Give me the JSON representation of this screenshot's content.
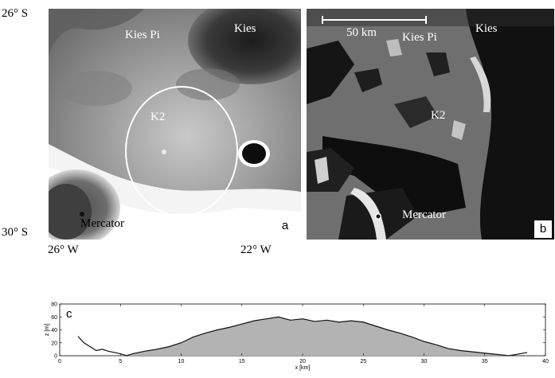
{
  "coordinates": {
    "lat_top": "26° S",
    "lat_bottom": "30° S",
    "lon_left": "26° W",
    "lon_right": "22° W"
  },
  "panel_a": {
    "badge": "a",
    "labels": {
      "kies_pi": "Kies Pi",
      "kies": "Kies",
      "k2": "K2",
      "mercator": "Mercator"
    }
  },
  "panel_b": {
    "badge": "b",
    "scale_bar": "50 km",
    "labels": {
      "kies_pi": "Kies Pi",
      "kies": "Kies",
      "k2": "K2",
      "mercator": "Mercator"
    }
  },
  "chart_data": {
    "type": "area",
    "panel_label": "c",
    "xlabel": "x [km]",
    "ylabel": "z [m]",
    "xlim": [
      0,
      40
    ],
    "ylim": [
      0,
      80
    ],
    "xticks": [
      0,
      5,
      10,
      15,
      20,
      25,
      30,
      35,
      40
    ],
    "yticks": [
      0,
      20,
      40,
      60,
      80
    ],
    "profile_x": [
      1.5,
      2,
      2.5,
      3,
      3.5,
      4,
      4.5,
      5,
      5.5,
      6,
      7,
      8,
      9,
      10,
      11,
      12,
      13,
      14,
      15,
      16,
      17,
      18,
      19,
      20,
      21,
      22,
      23,
      24,
      25,
      26,
      27,
      28,
      29,
      30,
      31,
      32,
      33,
      34,
      35,
      36,
      37,
      38.5
    ],
    "profile_z": [
      30,
      20,
      14,
      8,
      10,
      7,
      5,
      3,
      0,
      3,
      7,
      10,
      14,
      20,
      29,
      35,
      40,
      44,
      49,
      54,
      57,
      60,
      55,
      57,
      53,
      55,
      52,
      54,
      52,
      46,
      40,
      35,
      29,
      22,
      17,
      11,
      8,
      6,
      4,
      2,
      0,
      5
    ],
    "fill_x": [
      5,
      6,
      7,
      8,
      9,
      10,
      11,
      12,
      13,
      14,
      15,
      16,
      17,
      18,
      19,
      20,
      21,
      22,
      23,
      24,
      25,
      26,
      27,
      28,
      29,
      30,
      31,
      32,
      33,
      34,
      35,
      36,
      37
    ],
    "fill_z": [
      0,
      3,
      7,
      10,
      14,
      20,
      29,
      35,
      40,
      44,
      49,
      54,
      57,
      60,
      55,
      57,
      53,
      55,
      52,
      54,
      52,
      46,
      40,
      35,
      29,
      22,
      17,
      11,
      8,
      6,
      4,
      2,
      0
    ],
    "colors": {
      "line": "#111111",
      "fill": "#b3b3b3"
    }
  }
}
